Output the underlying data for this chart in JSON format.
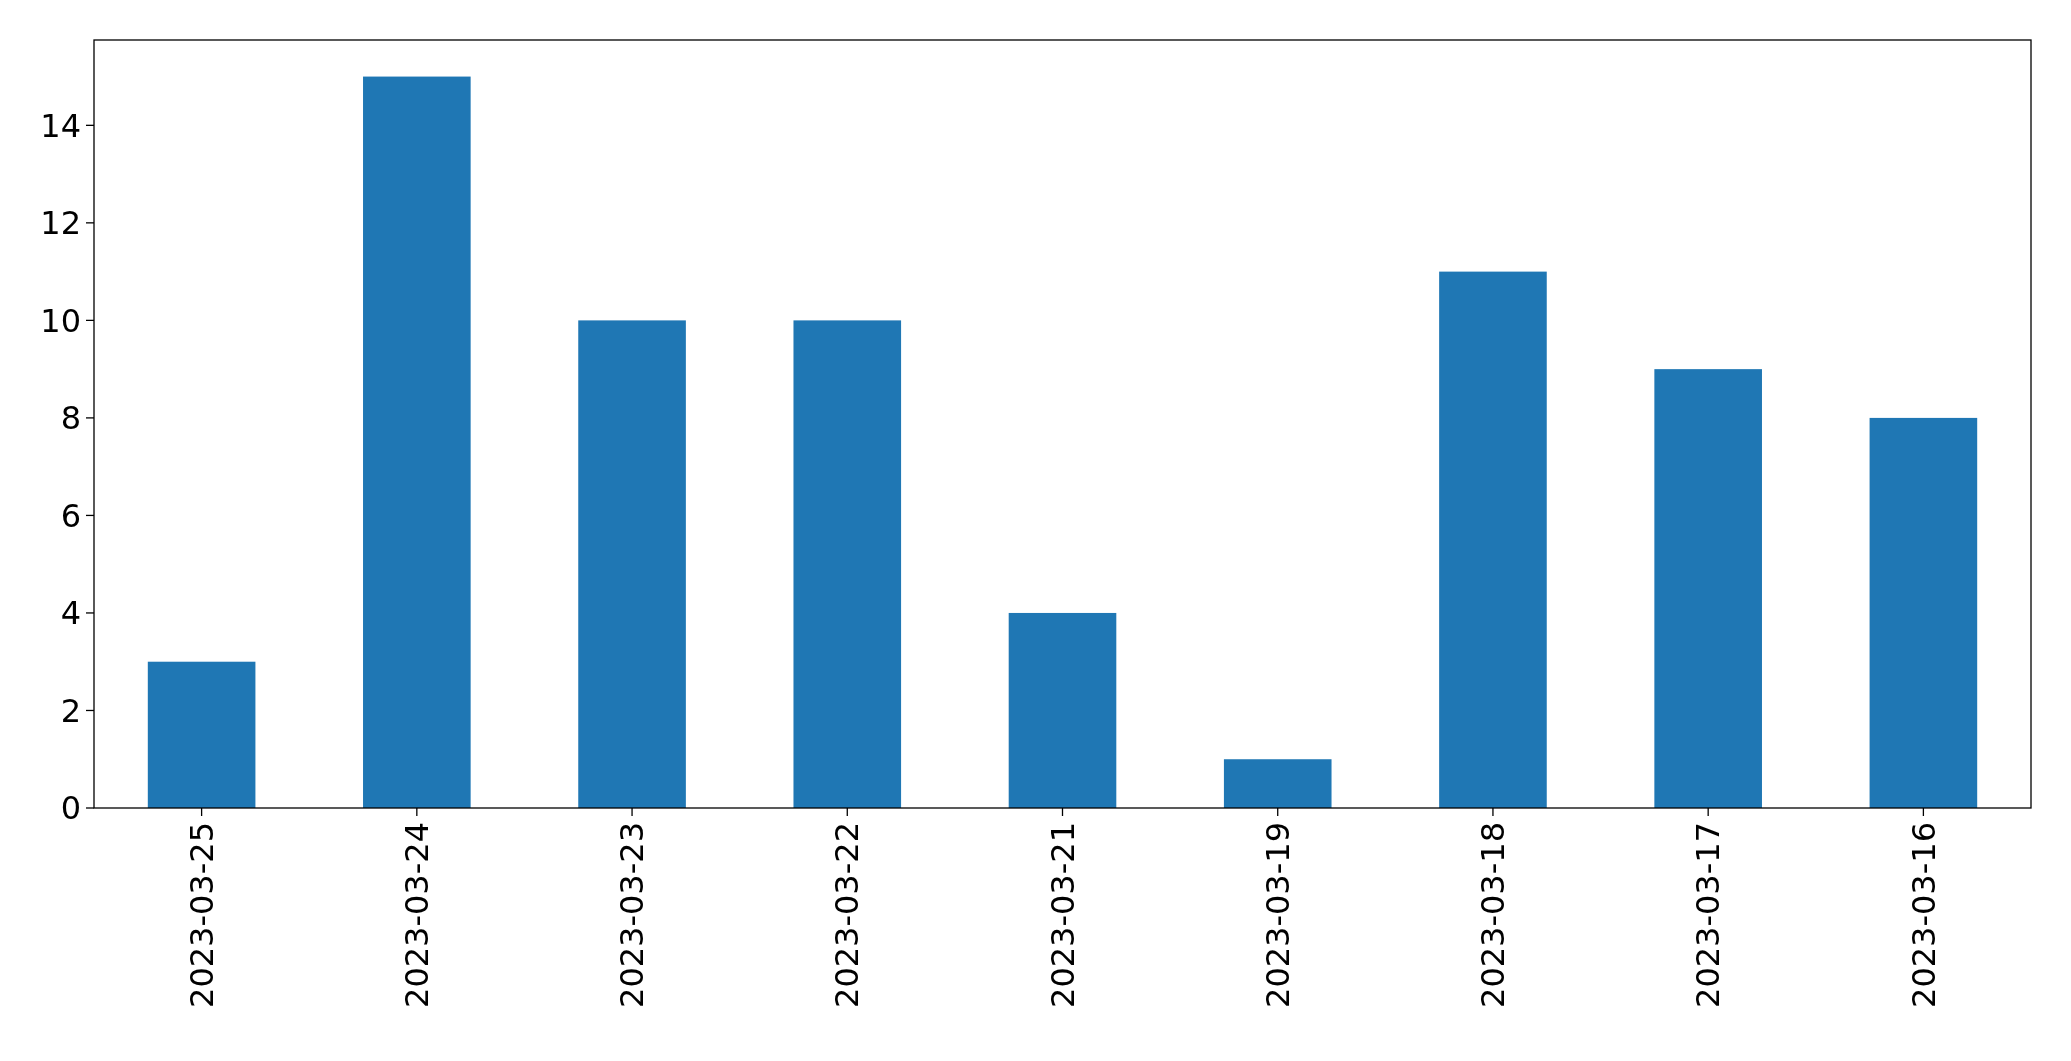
{
  "chart_data": {
    "type": "bar",
    "categories": [
      "2023-03-25",
      "2023-03-24",
      "2023-03-23",
      "2023-03-22",
      "2023-03-21",
      "2023-03-19",
      "2023-03-18",
      "2023-03-17",
      "2023-03-16"
    ],
    "values": [
      3,
      15,
      10,
      10,
      4,
      1,
      11,
      9,
      8
    ],
    "color": "#1f77b4",
    "ylim": [
      0,
      15.75
    ],
    "yticks": [
      0,
      2,
      4,
      6,
      8,
      10,
      12,
      14
    ],
    "grid": false
  }
}
